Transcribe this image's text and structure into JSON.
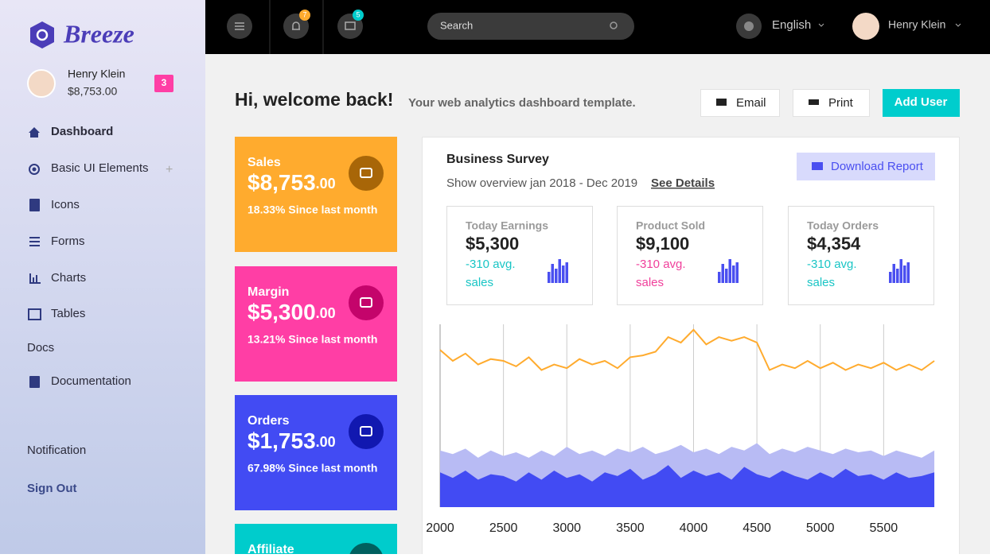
{
  "brand": "Breeze",
  "user": {
    "name": "Henry Klein",
    "balance": "$8,753.00",
    "badge": "3"
  },
  "nav": [
    "Dashboard",
    "Basic UI Elements",
    "Icons",
    "Forms",
    "Charts",
    "Tables"
  ],
  "docs": {
    "heading": "Docs",
    "items": [
      "Documentation"
    ]
  },
  "footer_nav": [
    "Notification",
    "Sign Out"
  ],
  "topbar": {
    "notifications": "7",
    "messages": "5",
    "search_placeholder": "Search",
    "language": "English",
    "user_name": "Henry Klein"
  },
  "header": {
    "title": "Hi, welcome back!",
    "subtitle": "Your web analytics dashboard template.",
    "buttons": [
      "Email",
      "Print",
      "Add User"
    ]
  },
  "stat_cards": [
    {
      "label": "Sales",
      "amount": "$8,753",
      "cents": ".00",
      "change": "18.33% Since last month",
      "color": "#ffab2e",
      "icon_color": "#a86608"
    },
    {
      "label": "Margin",
      "amount": "$5,300",
      "cents": ".00",
      "change": "13.21% Since last month",
      "color": "#ff3ea5",
      "icon_color": "#c4046b"
    },
    {
      "label": "Orders",
      "amount": "$1,753",
      "cents": ".00",
      "change": "67.98% Since last month",
      "color": "#424bf3",
      "icon_color": "#1118b0"
    },
    {
      "label": "Affiliate",
      "color": "#00cccc",
      "icon_color": "#00605f"
    }
  ],
  "survey": {
    "title": "Business Survey",
    "overview": "Show overview jan 2018 - Dec 2019",
    "link": "See Details",
    "button": "Download Report",
    "kpis": [
      {
        "label": "Today Earnings",
        "value": "$5,300",
        "delta": "-310 avg.",
        "unit": "sales",
        "color": "#19c5c5"
      },
      {
        "label": "Product Sold",
        "value": "$9,100",
        "delta": "-310 avg.",
        "unit": "sales",
        "color": "#f0409b"
      },
      {
        "label": "Today Orders",
        "value": "$4,354",
        "delta": "-310 avg.",
        "unit": "sales",
        "color": "#19c5c5"
      }
    ],
    "chart": {
      "type": "line",
      "x": [
        2000,
        2100,
        2200,
        2300,
        2400,
        2500,
        2600,
        2700,
        2800,
        2900,
        3000,
        3100,
        3200,
        3300,
        3400,
        3500,
        3600,
        3700,
        3800,
        3900,
        4000,
        4100,
        4200,
        4300,
        4400,
        4500,
        4600,
        4700,
        4800,
        4900,
        5000,
        5100,
        5200,
        5300,
        5400,
        5500,
        5600,
        5700,
        5800,
        5900
      ],
      "series": [
        {
          "color": "#ffab2e",
          "values": [
            86,
            80,
            84,
            78,
            81,
            80,
            77,
            82,
            75,
            78,
            76,
            81,
            78,
            80,
            76,
            82,
            83,
            85,
            93,
            90,
            97,
            89,
            93,
            91,
            93,
            90,
            75,
            78,
            76,
            80,
            76,
            79,
            75,
            78,
            76,
            79,
            75,
            78,
            75,
            80
          ]
        },
        {
          "color": "#b8bbf4",
          "values": [
            31,
            29,
            32,
            27,
            31,
            28,
            30,
            27,
            31,
            28,
            33,
            29,
            31,
            28,
            32,
            30,
            33,
            29,
            31,
            34,
            30,
            32,
            29,
            33,
            31,
            35,
            29,
            32,
            30,
            33,
            31,
            29,
            32,
            30,
            31,
            28,
            31,
            29,
            27,
            31
          ]
        },
        {
          "color": "#424bf3",
          "values": [
            19,
            16,
            20,
            15,
            18,
            17,
            14,
            19,
            15,
            20,
            16,
            18,
            14,
            19,
            17,
            21,
            15,
            18,
            23,
            16,
            20,
            17,
            19,
            15,
            22,
            18,
            16,
            20,
            17,
            15,
            19,
            16,
            21,
            17,
            18,
            15,
            19,
            16,
            17,
            19
          ]
        }
      ],
      "xlim": [
        2000,
        5950
      ],
      "ylim": [
        0,
        100
      ],
      "xticks": [
        2000,
        2500,
        3000,
        3500,
        4000,
        4500,
        5000,
        5500
      ],
      "grid": true
    }
  }
}
